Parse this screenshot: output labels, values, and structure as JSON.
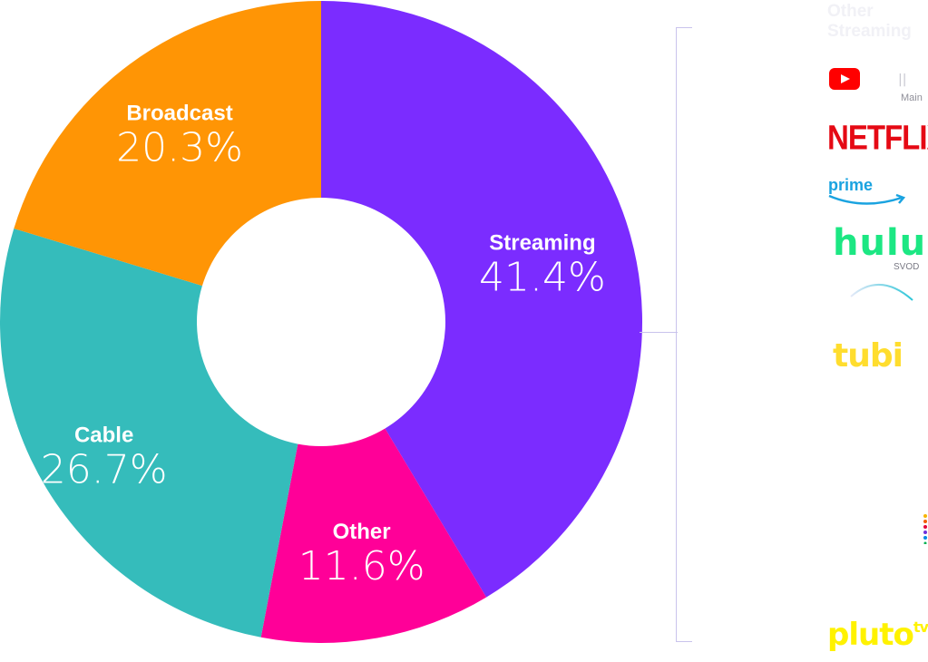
{
  "chart_data": {
    "type": "pie",
    "categories": [
      "Streaming",
      "Other",
      "Cable",
      "Broadcast"
    ],
    "values": [
      41.4,
      11.6,
      26.7,
      20.3
    ],
    "value_labels": [
      "41.4%",
      "11.6%",
      "26.7%",
      "20.3%"
    ],
    "colors": [
      "#7b2cff",
      "#ff0098",
      "#35bcbb",
      "#ff9505"
    ],
    "donut": true,
    "start": "top, clockwise"
  },
  "side_panel": {
    "heading": "Other Streaming",
    "logos": [
      {
        "icon": "youtube-icon",
        "bars_text": "||",
        "sub_text": "Main"
      },
      {
        "text": "NETFLIX",
        "color": "#e50914"
      },
      {
        "text": "prime",
        "color": "#1aa3e0"
      },
      {
        "text": "hulu",
        "sub_text": "SVOD",
        "color": "#1ce783"
      },
      {
        "icon": "arc-logo-icon"
      },
      {
        "text": "tubi",
        "color": "#ffdd2e"
      },
      {
        "icon": "dots-logo-icon"
      },
      {
        "text": "pluto",
        "superscript": "tv",
        "color": "#fff200"
      }
    ]
  }
}
